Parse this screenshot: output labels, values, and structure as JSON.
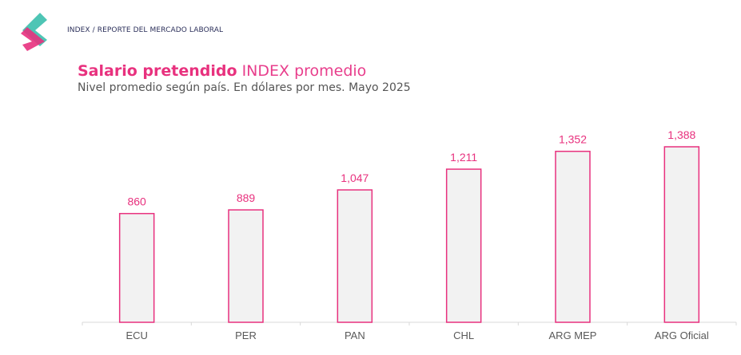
{
  "header": {
    "breadcrumb": "INDEX / REPORTE DEL MERCADO LABORAL",
    "logo_colors": [
      "#3bbfad",
      "#e8317e"
    ]
  },
  "chart_data": {
    "type": "bar",
    "title_bold": "Salario pretendido",
    "title_rest": "INDEX promedio",
    "subtitle": "Nivel promedio según país. En dólares por mes. Mayo 2025",
    "categories": [
      "ECU",
      "PER",
      "PAN",
      "CHL",
      "ARG MEP",
      "ARG Oficial"
    ],
    "values": [
      860,
      889,
      1047,
      1211,
      1352,
      1388
    ],
    "labels": [
      "860",
      "889",
      "1,047",
      "1,211",
      "1,352",
      "1,388"
    ],
    "xlabel": "",
    "ylabel": "",
    "ylim": [
      0,
      1388
    ],
    "grid": false,
    "colors": {
      "bar_fill": "#f2f2f2",
      "bar_stroke": "#e8317e",
      "label": "#e8317e",
      "axis": "#d9d9d9",
      "tick_text": "#595959"
    }
  }
}
